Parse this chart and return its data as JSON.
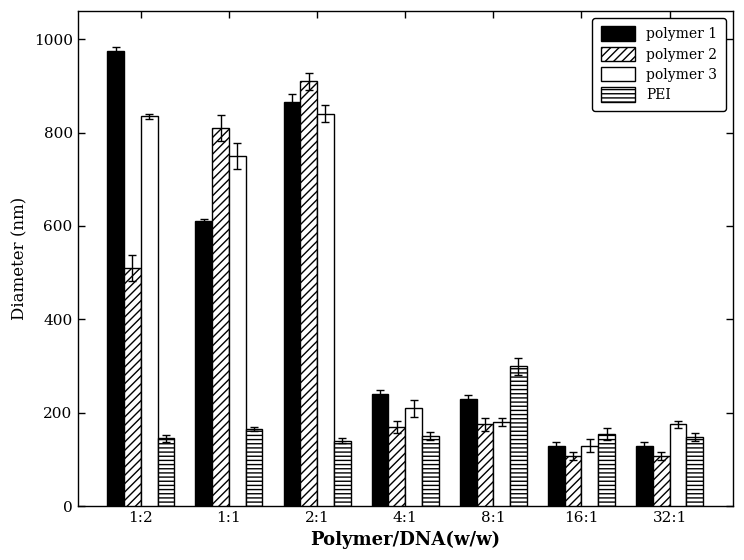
{
  "categories": [
    "1:2",
    "1:1",
    "2:1",
    "4:1",
    "8:1",
    "16:1",
    "32:1"
  ],
  "polymer1": [
    975,
    610,
    865,
    240,
    230,
    130,
    130
  ],
  "polymer2": [
    510,
    810,
    910,
    170,
    175,
    108,
    108
  ],
  "polymer3": [
    835,
    750,
    840,
    210,
    180,
    130,
    175
  ],
  "pei": [
    145,
    165,
    140,
    150,
    300,
    155,
    148
  ],
  "polymer1_err": [
    8,
    5,
    18,
    8,
    8,
    8,
    8
  ],
  "polymer2_err": [
    28,
    28,
    18,
    13,
    13,
    8,
    8
  ],
  "polymer3_err": [
    5,
    28,
    18,
    18,
    8,
    13,
    8
  ],
  "pei_err": [
    8,
    5,
    5,
    8,
    18,
    13,
    8
  ],
  "ylabel": "Diameter (nm)",
  "xlabel": "Polymer/DNA(w/w)",
  "ylim": [
    0,
    1060
  ],
  "yticks": [
    0,
    200,
    400,
    600,
    800,
    1000
  ],
  "bar_width": 0.19,
  "legend_labels": [
    "polymer 1",
    "polymer 2",
    "polymer 3",
    "PEI"
  ],
  "background_color": "#ffffff",
  "axis_fontsize": 12,
  "tick_fontsize": 11,
  "legend_fontsize": 10
}
